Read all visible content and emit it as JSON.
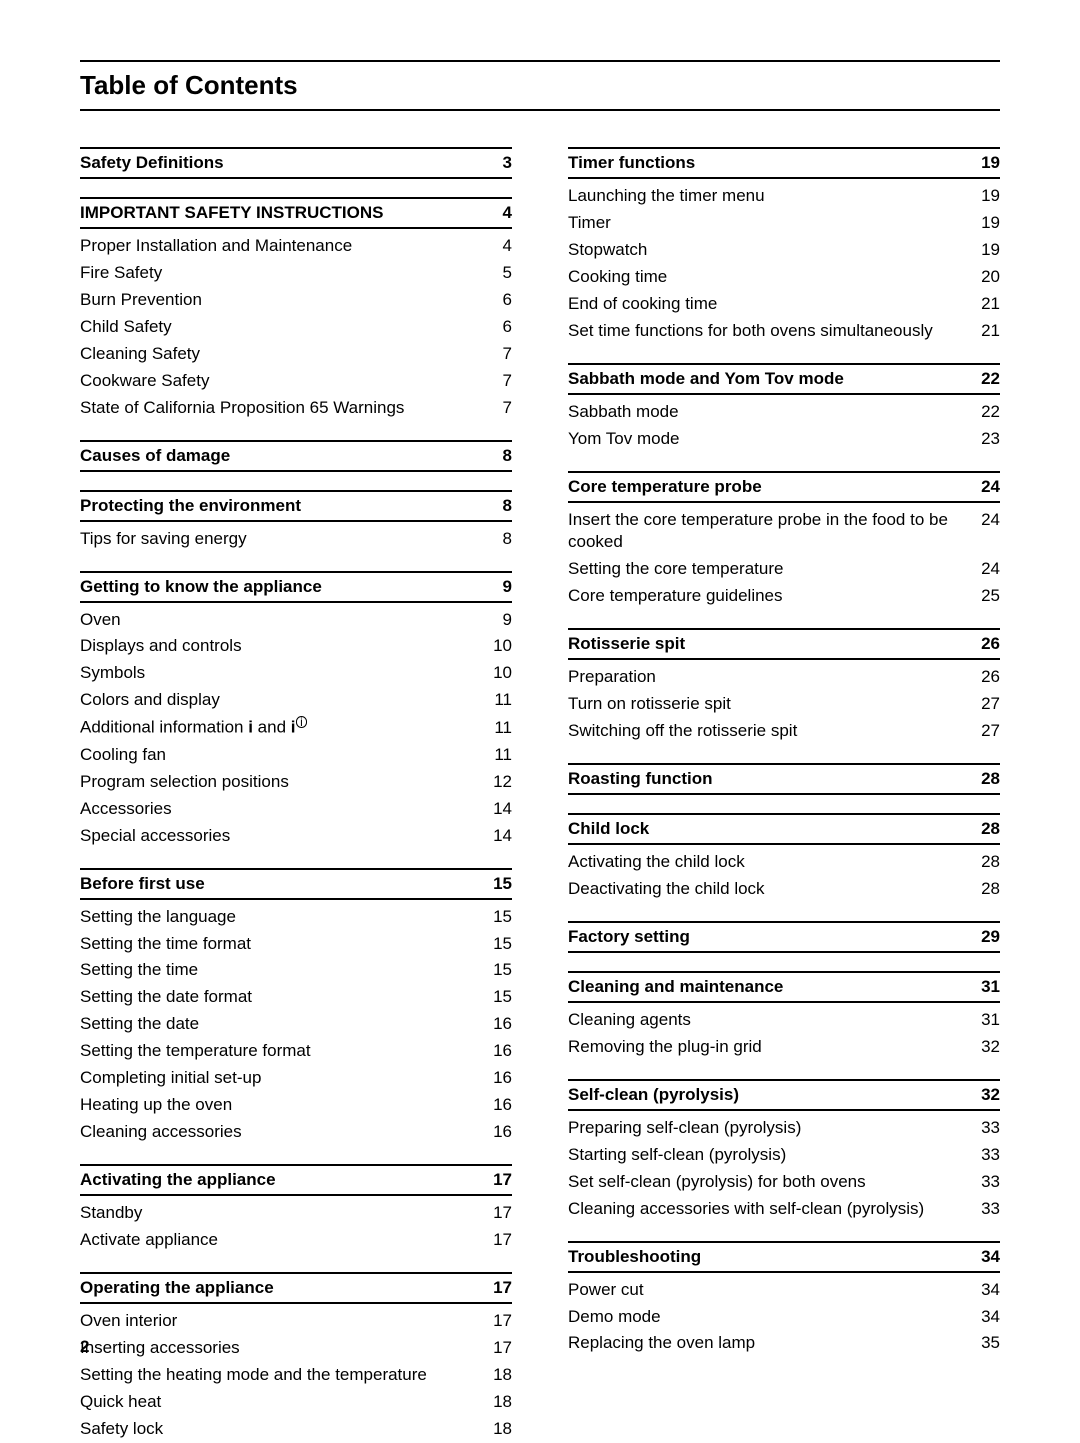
{
  "title": "Table of Contents",
  "page_number": "2",
  "columns": [
    [
      {
        "type": "section",
        "label": "Safety Definitions",
        "page": "3"
      },
      {
        "type": "section",
        "label": "IMPORTANT SAFETY INSTRUCTIONS",
        "page": "4"
      },
      {
        "type": "entry",
        "label": "Proper Installation and Maintenance",
        "page": "4"
      },
      {
        "type": "entry",
        "label": "Fire Safety",
        "page": "5"
      },
      {
        "type": "entry",
        "label": "Burn Prevention",
        "page": "6"
      },
      {
        "type": "entry",
        "label": "Child Safety",
        "page": "6"
      },
      {
        "type": "entry",
        "label": "Cleaning Safety",
        "page": "7"
      },
      {
        "type": "entry",
        "label": "Cookware Safety",
        "page": "7"
      },
      {
        "type": "entry",
        "label": "State of California Proposition 65 Warnings",
        "page": "7"
      },
      {
        "type": "section",
        "label": "Causes of damage",
        "page": "8"
      },
      {
        "type": "section",
        "label": "Protecting the environment",
        "page": "8"
      },
      {
        "type": "entry",
        "label": "Tips for saving energy",
        "page": "8"
      },
      {
        "type": "section",
        "label": "Getting to know the appliance",
        "page": "9"
      },
      {
        "type": "entry",
        "label": "Oven",
        "page": "9"
      },
      {
        "type": "entry",
        "label": "Displays and controls",
        "page": "10"
      },
      {
        "type": "entry",
        "label": "Symbols",
        "page": "10"
      },
      {
        "type": "entry",
        "label": "Colors and display",
        "page": "11"
      },
      {
        "type": "entry",
        "label": "Additional information i and i",
        "page": "11",
        "sup_icon": true
      },
      {
        "type": "entry",
        "label": "Cooling fan",
        "page": "11"
      },
      {
        "type": "entry",
        "label": "Program selection positions",
        "page": "12"
      },
      {
        "type": "entry",
        "label": "Accessories",
        "page": "14"
      },
      {
        "type": "entry",
        "label": "Special accessories",
        "page": "14"
      },
      {
        "type": "section",
        "label": "Before first use",
        "page": "15"
      },
      {
        "type": "entry",
        "label": "Setting the language",
        "page": "15"
      },
      {
        "type": "entry",
        "label": "Setting the time format",
        "page": "15"
      },
      {
        "type": "entry",
        "label": "Setting the time",
        "page": "15"
      },
      {
        "type": "entry",
        "label": "Setting the date format",
        "page": "15"
      },
      {
        "type": "entry",
        "label": "Setting the date",
        "page": "16"
      },
      {
        "type": "entry",
        "label": "Setting the temperature format",
        "page": "16"
      },
      {
        "type": "entry",
        "label": "Completing initial set-up",
        "page": "16"
      },
      {
        "type": "entry",
        "label": "Heating up the oven",
        "page": "16"
      },
      {
        "type": "entry",
        "label": "Cleaning accessories",
        "page": "16"
      },
      {
        "type": "section",
        "label": "Activating the appliance",
        "page": "17"
      },
      {
        "type": "entry",
        "label": "Standby",
        "page": "17"
      },
      {
        "type": "entry",
        "label": "Activate appliance",
        "page": "17"
      },
      {
        "type": "section",
        "label": "Operating the appliance",
        "page": "17"
      },
      {
        "type": "entry",
        "label": "Oven interior",
        "page": "17"
      },
      {
        "type": "entry",
        "label": "Inserting accessories",
        "page": "17"
      },
      {
        "type": "entry",
        "label": "Setting the heating mode and the temperature",
        "page": "18"
      },
      {
        "type": "entry",
        "label": "Quick heat",
        "page": "18"
      },
      {
        "type": "entry",
        "label": "Safety lock",
        "page": "18"
      }
    ],
    [
      {
        "type": "section",
        "label": "Timer functions",
        "page": "19"
      },
      {
        "type": "entry",
        "label": "Launching the timer menu",
        "page": "19"
      },
      {
        "type": "entry",
        "label": "Timer",
        "page": "19"
      },
      {
        "type": "entry",
        "label": "Stopwatch",
        "page": "19"
      },
      {
        "type": "entry",
        "label": "Cooking time",
        "page": "20"
      },
      {
        "type": "entry",
        "label": "End of cooking time",
        "page": "21"
      },
      {
        "type": "entry",
        "label": "Set time functions for both ovens simultaneously",
        "page": "21"
      },
      {
        "type": "section",
        "label": "Sabbath mode and Yom Tov mode",
        "page": "22"
      },
      {
        "type": "entry",
        "label": "Sabbath mode",
        "page": "22"
      },
      {
        "type": "entry",
        "label": "Yom Tov mode",
        "page": "23"
      },
      {
        "type": "section",
        "label": "Core temperature probe",
        "page": "24"
      },
      {
        "type": "entry",
        "label": "Insert the core temperature probe in the food to be cooked",
        "page": "24"
      },
      {
        "type": "entry",
        "label": "Setting the core temperature",
        "page": "24"
      },
      {
        "type": "entry",
        "label": "Core temperature guidelines",
        "page": "25"
      },
      {
        "type": "section",
        "label": "Rotisserie spit",
        "page": "26"
      },
      {
        "type": "entry",
        "label": "Preparation",
        "page": "26"
      },
      {
        "type": "entry",
        "label": "Turn on rotisserie spit",
        "page": "27"
      },
      {
        "type": "entry",
        "label": "Switching off the rotisserie spit",
        "page": "27"
      },
      {
        "type": "section",
        "label": "Roasting function",
        "page": "28"
      },
      {
        "type": "section",
        "label": "Child lock",
        "page": "28"
      },
      {
        "type": "entry",
        "label": "Activating the child lock",
        "page": "28"
      },
      {
        "type": "entry",
        "label": "Deactivating the child lock",
        "page": "28"
      },
      {
        "type": "section",
        "label": "Factory setting",
        "page": "29"
      },
      {
        "type": "section",
        "label": "Cleaning and maintenance",
        "page": "31"
      },
      {
        "type": "entry",
        "label": "Cleaning agents",
        "page": "31"
      },
      {
        "type": "entry",
        "label": "Removing the plug-in grid",
        "page": "32"
      },
      {
        "type": "section",
        "label": "Self-clean (pyrolysis)",
        "page": "32"
      },
      {
        "type": "entry",
        "label": "Preparing self-clean (pyrolysis)",
        "page": "33"
      },
      {
        "type": "entry",
        "label": "Starting self-clean (pyrolysis)",
        "page": "33"
      },
      {
        "type": "entry",
        "label": "Set self-clean (pyrolysis) for both ovens",
        "page": "33"
      },
      {
        "type": "entry",
        "label": "Cleaning accessories with self-clean (pyrolysis)",
        "page": "33"
      },
      {
        "type": "section",
        "label": "Troubleshooting",
        "page": "34"
      },
      {
        "type": "entry",
        "label": "Power cut",
        "page": "34"
      },
      {
        "type": "entry",
        "label": "Demo mode",
        "page": "34"
      },
      {
        "type": "entry",
        "label": "Replacing the oven lamp",
        "page": "35"
      }
    ]
  ]
}
